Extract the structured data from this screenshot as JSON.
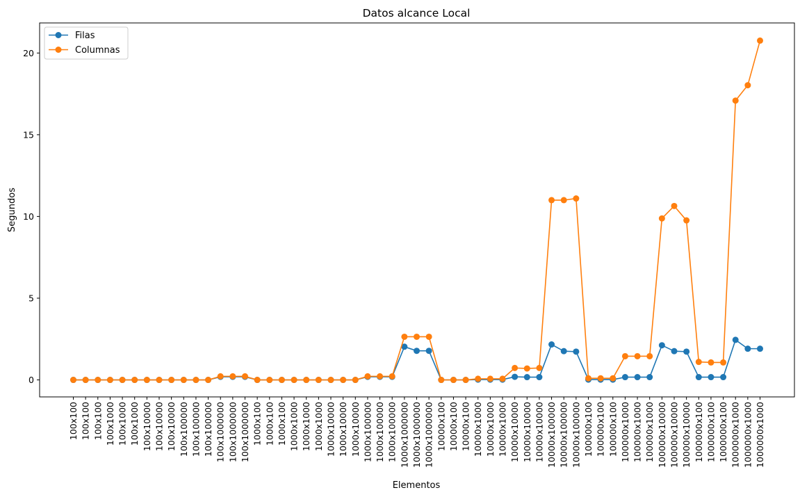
{
  "chart_data": {
    "type": "line",
    "title": "Datos alcance Local",
    "xlabel": "Elementos",
    "ylabel": "Segundos",
    "ylim": [
      -1.04,
      21.84
    ],
    "yticks": [
      0,
      5,
      10,
      15,
      20
    ],
    "legend_position": "top-left",
    "grid": false,
    "categories": [
      "100x100",
      "100x100",
      "100x100",
      "100x1000",
      "100x1000",
      "100x1000",
      "100x10000",
      "100x10000",
      "100x10000",
      "100x100000",
      "100x100000",
      "100x100000",
      "100x1000000",
      "100x1000000",
      "100x1000000",
      "1000x100",
      "1000x100",
      "1000x100",
      "1000x1000",
      "1000x1000",
      "1000x1000",
      "1000x10000",
      "1000x10000",
      "1000x10000",
      "1000x100000",
      "1000x100000",
      "1000x100000",
      "1000x1000000",
      "1000x1000000",
      "1000x1000000",
      "10000x100",
      "10000x100",
      "10000x100",
      "10000x1000",
      "10000x1000",
      "10000x1000",
      "10000x10000",
      "10000x10000",
      "10000x10000",
      "10000x100000",
      "10000x100000",
      "10000x100000",
      "100000x100",
      "100000x100",
      "100000x100",
      "100000x1000",
      "100000x1000",
      "100000x1000",
      "100000x10000",
      "100000x10000",
      "100000x10000",
      "1000000x100",
      "1000000x100",
      "1000000x100",
      "1000000x1000",
      "1000000x1000",
      "1000000x1000"
    ],
    "series": [
      {
        "name": "Filas",
        "color": "#1f77b4",
        "values": [
          0.0,
          0.0,
          0.0,
          0.0,
          0.0,
          0.0,
          0.0,
          0.0,
          0.0,
          0.0,
          0.0,
          0.0,
          0.19,
          0.19,
          0.19,
          0.0,
          0.0,
          0.0,
          0.0,
          0.0,
          0.0,
          0.0,
          0.0,
          0.0,
          0.19,
          0.19,
          0.19,
          2.03,
          1.78,
          1.78,
          0.0,
          0.0,
          0.0,
          0.02,
          0.02,
          0.02,
          0.19,
          0.17,
          0.17,
          2.17,
          1.76,
          1.73,
          0.02,
          0.02,
          0.02,
          0.17,
          0.17,
          0.17,
          2.12,
          1.76,
          1.73,
          0.17,
          0.17,
          0.17,
          2.45,
          1.91,
          1.91
        ]
      },
      {
        "name": "Columnas",
        "color": "#ff7f0e",
        "values": [
          0.0,
          0.0,
          0.0,
          0.0,
          0.0,
          0.0,
          0.0,
          0.0,
          0.0,
          0.0,
          0.0,
          0.0,
          0.22,
          0.22,
          0.22,
          0.0,
          0.0,
          0.0,
          0.0,
          0.0,
          0.0,
          0.0,
          0.0,
          0.0,
          0.22,
          0.22,
          0.22,
          2.64,
          2.64,
          2.64,
          0.0,
          0.0,
          0.0,
          0.07,
          0.07,
          0.07,
          0.73,
          0.7,
          0.73,
          11.0,
          11.0,
          11.1,
          0.1,
          0.1,
          0.1,
          1.45,
          1.45,
          1.45,
          9.88,
          10.64,
          9.76,
          1.1,
          1.07,
          1.07,
          17.09,
          18.03,
          20.76
        ]
      }
    ]
  }
}
